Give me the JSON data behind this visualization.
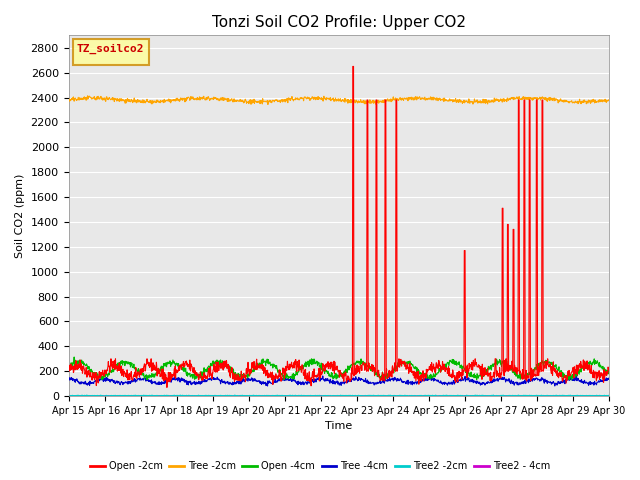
{
  "title": "Tonzi Soil CO2 Profile: Upper CO2",
  "xlabel": "Time",
  "ylabel": "Soil CO2 (ppm)",
  "ylim": [
    0,
    2900
  ],
  "yticks": [
    0,
    200,
    400,
    600,
    800,
    1000,
    1200,
    1400,
    1600,
    1800,
    2000,
    2200,
    2400,
    2600,
    2800
  ],
  "xtick_labels": [
    "Apr 15",
    "Apr 16",
    "Apr 17",
    "Apr 18",
    "Apr 19",
    "Apr 20",
    "Apr 21",
    "Apr 22",
    "Apr 23",
    "Apr 24",
    "Apr 25",
    "Apr 26",
    "Apr 27",
    "Apr 28",
    "Apr 29",
    "Apr 30"
  ],
  "legend_label": "TZ_soilco2",
  "series_labels": [
    "Open -2cm",
    "Tree -2cm",
    "Open -4cm",
    "Tree -4cm",
    "Tree2 -2cm",
    "Tree2 - 4cm"
  ],
  "series_colors": [
    "#ff0000",
    "#ffa500",
    "#00bb00",
    "#0000cc",
    "#00cccc",
    "#cc00cc"
  ],
  "background_color": "#e8e8e8",
  "grid_color": "#ffffff",
  "title_fontsize": 11,
  "axis_fontsize": 8,
  "legend_box_color": "#ffff99",
  "legend_box_edge": "#cc8800",
  "fig_bg": "#ffffff"
}
